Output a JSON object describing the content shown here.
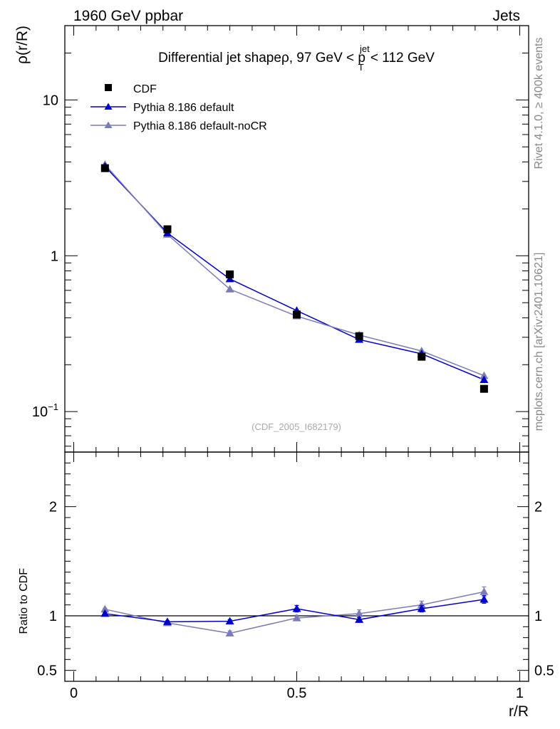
{
  "header": {
    "left": "1960 GeV ppbar",
    "right": "Jets"
  },
  "side": {
    "rivet": "Rivet 4.1.0, ≥ 400k events",
    "mcplots": "mcplots.cern.ch [arXiv:2401.10621]"
  },
  "chart_data": [
    {
      "type": "line",
      "title": {
        "prefix": "Differential jet shapeρ, 97 GeV < p",
        "sup": "jet",
        "sub": "T",
        "suffix": " < 112 GeV"
      },
      "ylabel": "ρ(r/R)",
      "xlabel": "",
      "yscale": "log",
      "ylim": [
        0.055,
        30
      ],
      "xlim": [
        -0.02,
        1.02
      ],
      "yticks": [
        {
          "value": 0.1,
          "base": "10",
          "exp": "−1"
        },
        {
          "value": 1,
          "label": "1"
        },
        {
          "value": 10,
          "label": "10"
        }
      ],
      "watermark": "(CDF_2005_I682179)",
      "x": [
        0.07,
        0.21,
        0.35,
        0.5,
        0.64,
        0.78,
        0.92
      ],
      "series": [
        {
          "name": "CDF",
          "marker": "square",
          "color": "#000000",
          "values": [
            3.65,
            1.48,
            0.76,
            0.42,
            0.305,
            0.225,
            0.14
          ]
        },
        {
          "name": "Pythia 8.186 default",
          "marker": "triangle",
          "color": "#0000cc",
          "values": [
            3.75,
            1.4,
            0.71,
            0.445,
            0.29,
            0.235,
            0.16
          ]
        },
        {
          "name": "Pythia 8.186 default-noCR",
          "marker": "triangle",
          "color": "#7b7bb8",
          "values": [
            3.85,
            1.37,
            0.61,
            0.41,
            0.31,
            0.245,
            0.17
          ]
        }
      ]
    },
    {
      "type": "line",
      "title": "",
      "ylabel": "Ratio to CDF",
      "xlabel": "r/R",
      "ylim": [
        0.4,
        2.5
      ],
      "xlim": [
        -0.02,
        1.02
      ],
      "yticks": [
        {
          "value": 0.5,
          "label": "0.5"
        },
        {
          "value": 1,
          "label": "1"
        },
        {
          "value": 2,
          "label": "2"
        }
      ],
      "xticks": [
        {
          "value": 0,
          "label": "0"
        },
        {
          "value": 0.5,
          "label": "0.5"
        },
        {
          "value": 1,
          "label": "1"
        }
      ],
      "x": [
        0.07,
        0.21,
        0.35,
        0.5,
        0.64,
        0.78,
        0.92
      ],
      "series": [
        {
          "name": "Pythia 8.186 default",
          "marker": "triangle",
          "color": "#0000cc",
          "values": [
            1.02,
            0.945,
            0.95,
            1.065,
            0.965,
            1.065,
            1.15
          ],
          "errors": [
            0.01,
            0.01,
            0.015,
            0.03,
            0.02,
            0.03,
            0.035
          ]
        },
        {
          "name": "Pythia 8.186 default-noCR",
          "marker": "triangle",
          "color": "#7b7bb8",
          "values": [
            1.06,
            0.935,
            0.84,
            0.98,
            1.02,
            1.1,
            1.22
          ],
          "errors": [
            0.01,
            0.01,
            0.02,
            0.025,
            0.035,
            0.035,
            0.045
          ]
        }
      ]
    }
  ]
}
